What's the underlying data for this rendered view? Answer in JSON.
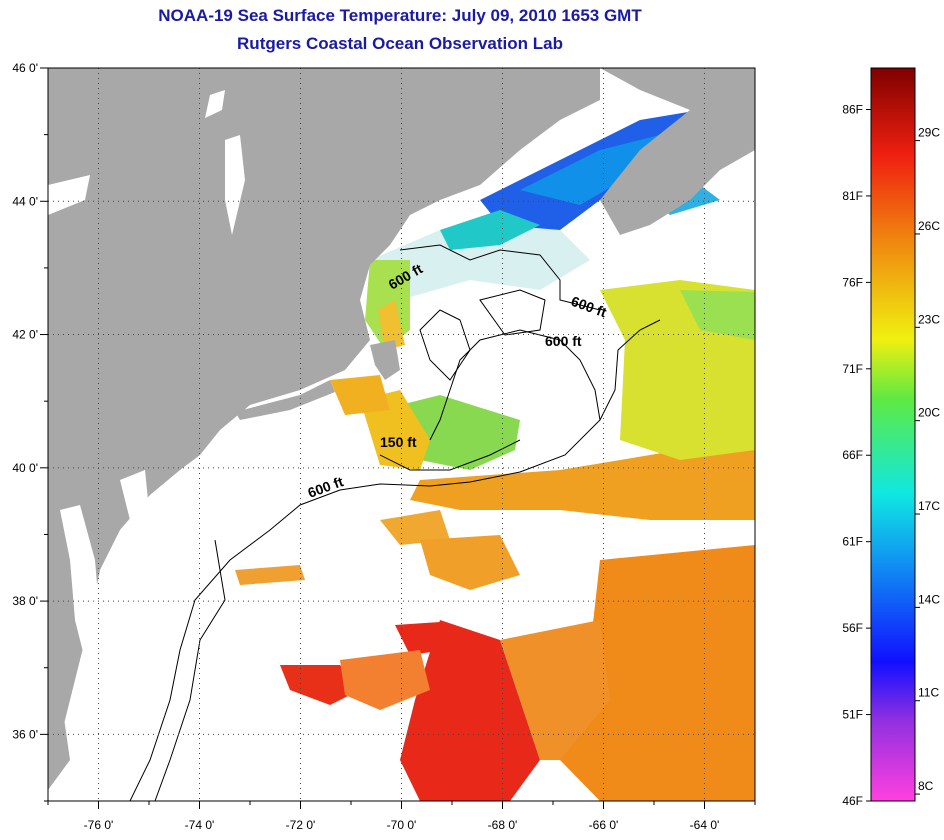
{
  "title": {
    "line1": "NOAA-19 Sea Surface Temperature:  July 09, 2010 1653 GMT",
    "line2": "Rutgers Coastal Ocean Observation Lab"
  },
  "axes": {
    "lat_labels": [
      "46 0'",
      "44 0'",
      "42 0'",
      "40 0'",
      "38 0'",
      "36 0'"
    ],
    "lat_values": [
      46,
      44,
      42,
      40,
      38,
      36
    ],
    "lon_labels": [
      "-76 0'",
      "-74 0'",
      "-72 0'",
      "-70 0'",
      "-68 0'",
      "-66 0'",
      "-64 0'"
    ],
    "lon_values": [
      -76,
      -74,
      -72,
      -70,
      -68,
      -66,
      -64
    ],
    "lat_range": [
      35,
      46
    ],
    "lon_range": [
      -77,
      -63
    ]
  },
  "contours": [
    {
      "label": "600 ft",
      "place": "gulf-of-maine-north"
    },
    {
      "label": "600 ft",
      "place": "northeast-channel"
    },
    {
      "label": "600 ft",
      "place": "georges-bank-north"
    },
    {
      "label": "150 ft",
      "place": "georges-bank-south"
    },
    {
      "label": "600 ft",
      "place": "shelf-break"
    }
  ],
  "colorbar": {
    "fahrenheit": [
      "86F",
      "81F",
      "76F",
      "71F",
      "66F",
      "61F",
      "56F",
      "51F",
      "46F"
    ],
    "fahrenheit_values": [
      86,
      81,
      76,
      71,
      66,
      61,
      56,
      51,
      46
    ],
    "celsius": [
      "29C",
      "26C",
      "23C",
      "20C",
      "17C",
      "14C",
      "11C",
      "8C"
    ],
    "celsius_values": [
      29,
      26,
      23,
      20,
      17,
      14,
      11,
      8
    ],
    "range_f": [
      46,
      88.4
    ]
  },
  "colors": {
    "land": "#a8a8a8",
    "title": "#1a1aa8",
    "warm": "#e82010",
    "orange": "#f08a18",
    "yellow": "#e8e418",
    "green": "#58d868",
    "blue": "#2060e0"
  }
}
